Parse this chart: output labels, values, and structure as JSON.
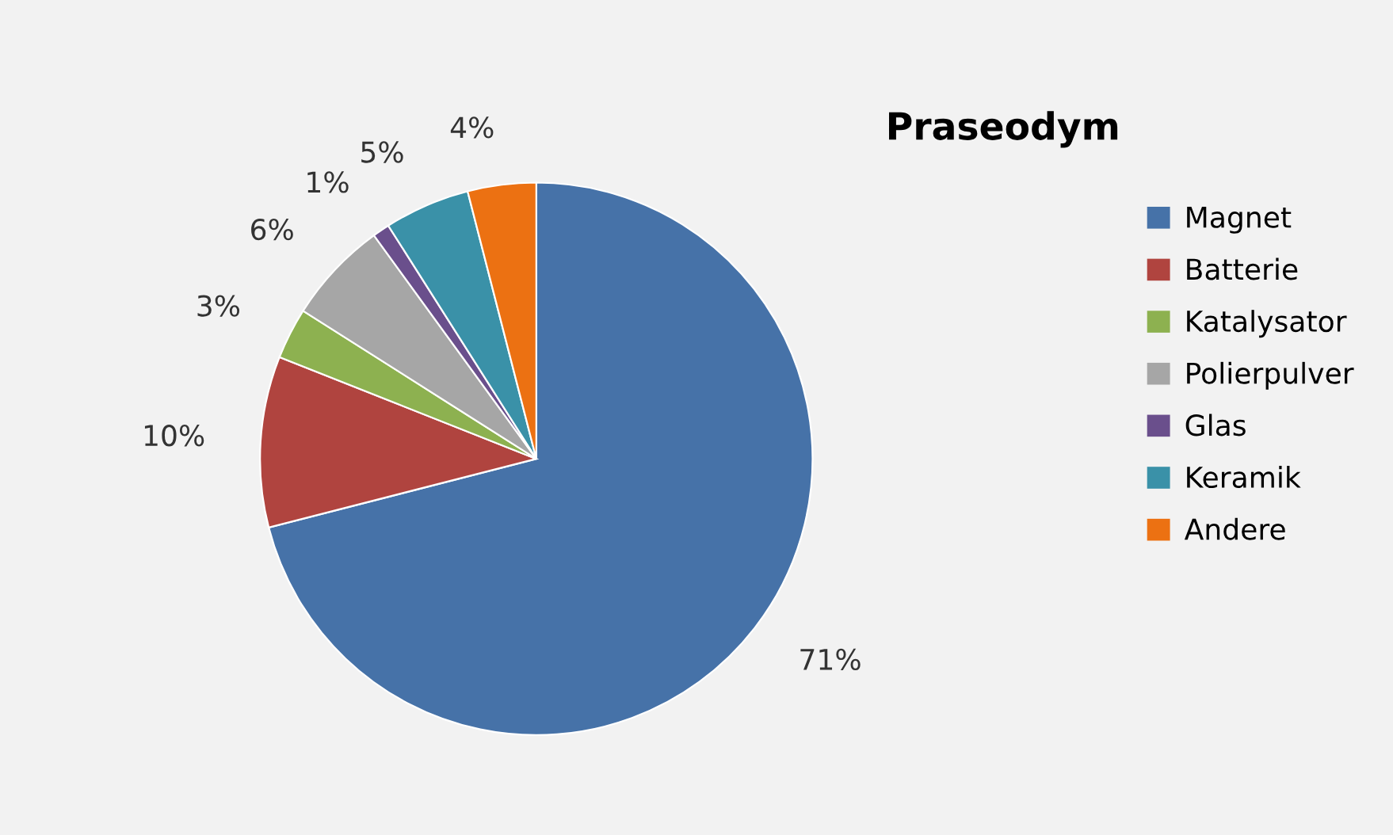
{
  "chart_data": {
    "type": "pie",
    "title": "Praseodym",
    "categories": [
      "Magnet",
      "Batterie",
      "Katalysator",
      "Polierpulver",
      "Glas",
      "Keramik",
      "Andere"
    ],
    "values": [
      71,
      10,
      3,
      6,
      1,
      5,
      4
    ],
    "colors": [
      "#4672a8",
      "#b0443f",
      "#8db150",
      "#a6a6a6",
      "#6a4f8c",
      "#3a91a8",
      "#ec7112"
    ],
    "value_labels": [
      "71%",
      "10%",
      "3%",
      "6%",
      "1%",
      "5%",
      "4%"
    ],
    "legend": "right"
  }
}
